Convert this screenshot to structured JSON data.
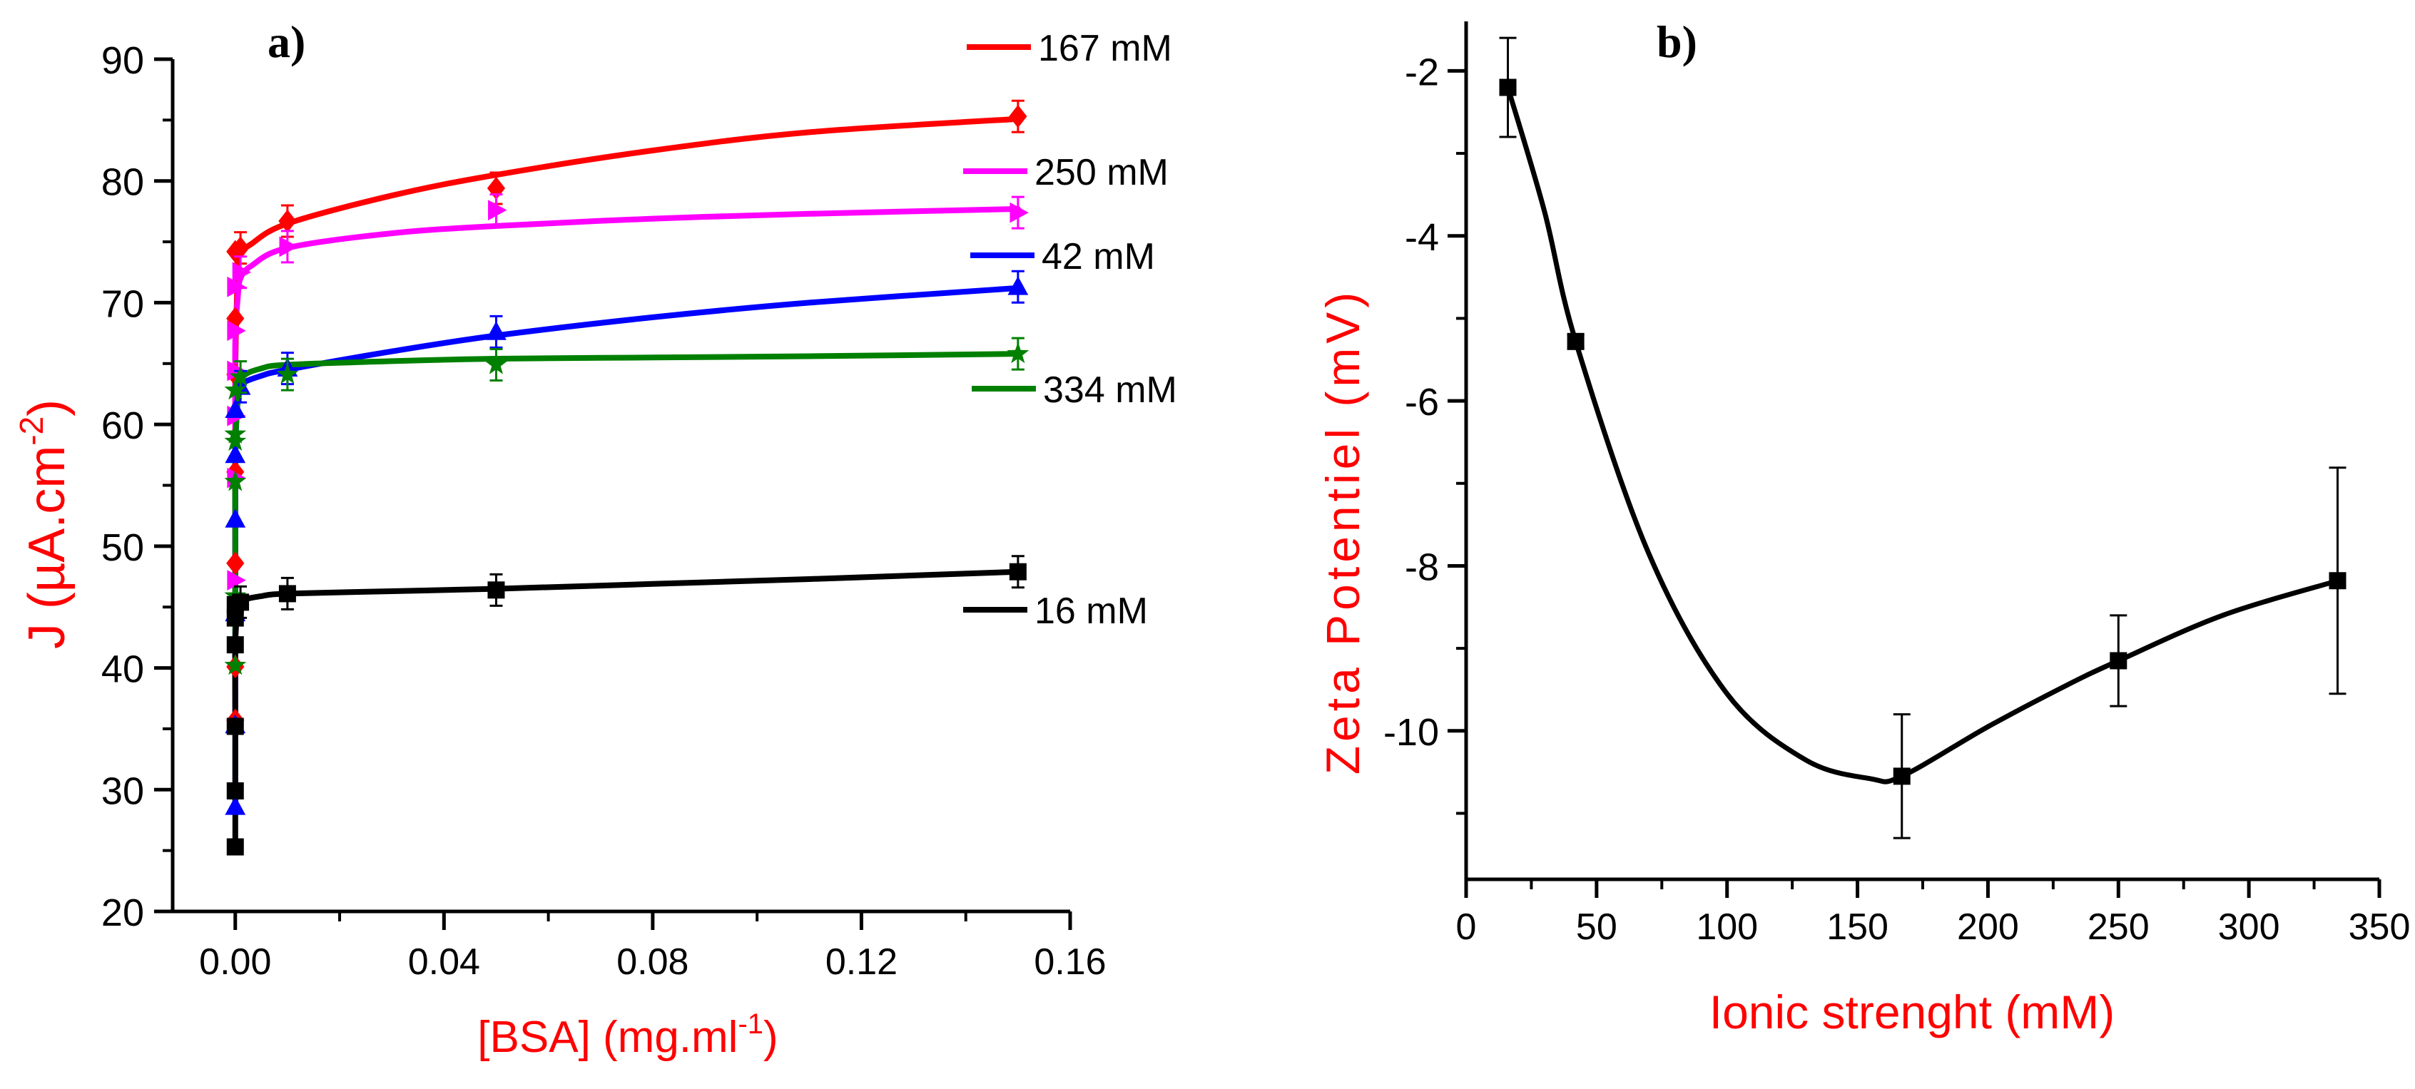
{
  "colors": {
    "axis": "#000000",
    "label": "#ff0000"
  },
  "chart_data": [
    {
      "panel": "a)",
      "type": "line",
      "xlabel": "[BSA] (mg.ml",
      "xlabel_sup": "-1",
      "xlabel_end": ")",
      "ylabel": "J (µA.cm",
      "ylabel_sup": "-2",
      "ylabel_end": ")",
      "xlim": [
        -0.012,
        0.16
      ],
      "ylim": [
        20,
        90
      ],
      "xticks": [
        "0.00",
        "0.04",
        "0.08",
        "0.12",
        "0.16"
      ],
      "yticks": [
        "20",
        "30",
        "40",
        "50",
        "60",
        "70",
        "80",
        "90"
      ],
      "legend_position": "right",
      "series": [
        {
          "name": "167 mM",
          "color": "#ff0000",
          "marker": "diamond",
          "x": [
            0,
            0,
            0,
            0,
            0,
            0,
            0,
            0.001,
            0.01,
            0.05,
            0.15
          ],
          "y": [
            35.7,
            40.1,
            48.6,
            56.1,
            64.1,
            68.7,
            74.2,
            74.5,
            76.7,
            79.4,
            85.3
          ],
          "fit_x": [
            0,
            0,
            0,
            0.0005,
            0.001,
            0.003,
            0.01,
            0.03,
            0.05,
            0.08,
            0.11,
            0.15
          ],
          "fit_y": [
            35,
            48,
            64,
            72.5,
            74,
            74.8,
            76.5,
            78.8,
            80.5,
            82.5,
            84,
            85.1
          ]
        },
        {
          "name": "250 mM",
          "color": "#ff00ff",
          "marker": "triangle-right",
          "x": [
            0,
            0,
            0,
            0,
            0,
            0,
            0.001,
            0.01,
            0.05,
            0.15
          ],
          "y": [
            47.2,
            55.6,
            60.7,
            64.4,
            67.7,
            71.3,
            72.5,
            74.6,
            77.6,
            77.4
          ],
          "fit_x": [
            0,
            0,
            0,
            0.0005,
            0.001,
            0.003,
            0.01,
            0.03,
            0.05,
            0.08,
            0.11,
            0.15
          ],
          "fit_y": [
            47,
            60,
            67,
            70.5,
            72,
            73,
            74.5,
            75.7,
            76.3,
            76.9,
            77.3,
            77.7
          ]
        },
        {
          "name": "42 mM",
          "color": "#0000ff",
          "marker": "triangle-up",
          "x": [
            0,
            0,
            0,
            0,
            0,
            0,
            0.001,
            0.01,
            0.05,
            0.15
          ],
          "y": [
            28.6,
            35.3,
            44.5,
            52.2,
            57.5,
            61.2,
            63.1,
            64.6,
            67.6,
            71.3
          ],
          "fit_x": [
            0,
            0,
            0,
            0.0005,
            0.001,
            0.005,
            0.01,
            0.03,
            0.05,
            0.08,
            0.11,
            0.15
          ],
          "fit_y": [
            28,
            44,
            57,
            62.5,
            63.3,
            64,
            64.5,
            66,
            67.3,
            68.8,
            70,
            71.2
          ]
        },
        {
          "name": "334 mM",
          "color": "#008000",
          "marker": "star",
          "x": [
            0,
            0,
            0,
            0,
            0,
            0,
            0.001,
            0.01,
            0.05,
            0.15
          ],
          "y": [
            40.2,
            45.9,
            55.3,
            58.6,
            59.2,
            62.8,
            63.9,
            64.1,
            64.9,
            65.8
          ],
          "fit_x": [
            0,
            0,
            0,
            0.0005,
            0.001,
            0.005,
            0.01,
            0.03,
            0.05,
            0.08,
            0.11,
            0.15
          ],
          "fit_y": [
            40,
            50,
            58,
            62,
            63.8,
            64.6,
            64.9,
            65.2,
            65.4,
            65.5,
            65.6,
            65.8
          ]
        },
        {
          "name": "16 mM",
          "color": "#000000",
          "marker": "square",
          "x": [
            0,
            0,
            0,
            0,
            0,
            0,
            0.001,
            0.01,
            0.05,
            0.15
          ],
          "y": [
            25.3,
            29.9,
            35.2,
            41.9,
            44.1,
            45.2,
            45.4,
            46.1,
            46.4,
            47.9
          ],
          "fit_x": [
            0,
            0,
            0,
            0.0005,
            0.001,
            0.005,
            0.01,
            0.03,
            0.05,
            0.08,
            0.11,
            0.15
          ],
          "fit_y": [
            25,
            35,
            42,
            44.8,
            45.5,
            45.9,
            46.1,
            46.3,
            46.5,
            46.9,
            47.3,
            47.9
          ]
        }
      ]
    },
    {
      "panel": "b)",
      "type": "line",
      "xlabel": "Ionic strenght (mM)",
      "ylabel": "Zeta Potentiel (mV)",
      "xlim": [
        0,
        350
      ],
      "ylim": [
        -11.8,
        -1.4
      ],
      "xticks": [
        "0",
        "50",
        "100",
        "150",
        "200",
        "250",
        "300",
        "350"
      ],
      "yticks": [
        "-2",
        "-4",
        "-6",
        "-8",
        "-10"
      ],
      "series": [
        {
          "name": "Zeta potential",
          "color": "#000000",
          "marker": "square",
          "x": [
            16,
            42,
            167,
            250,
            334
          ],
          "y": [
            -2.2,
            -5.28,
            -10.55,
            -9.15,
            -8.18
          ],
          "yerr": [
            0.6,
            0.08,
            0.75,
            0.55,
            1.37
          ]
        }
      ]
    }
  ]
}
